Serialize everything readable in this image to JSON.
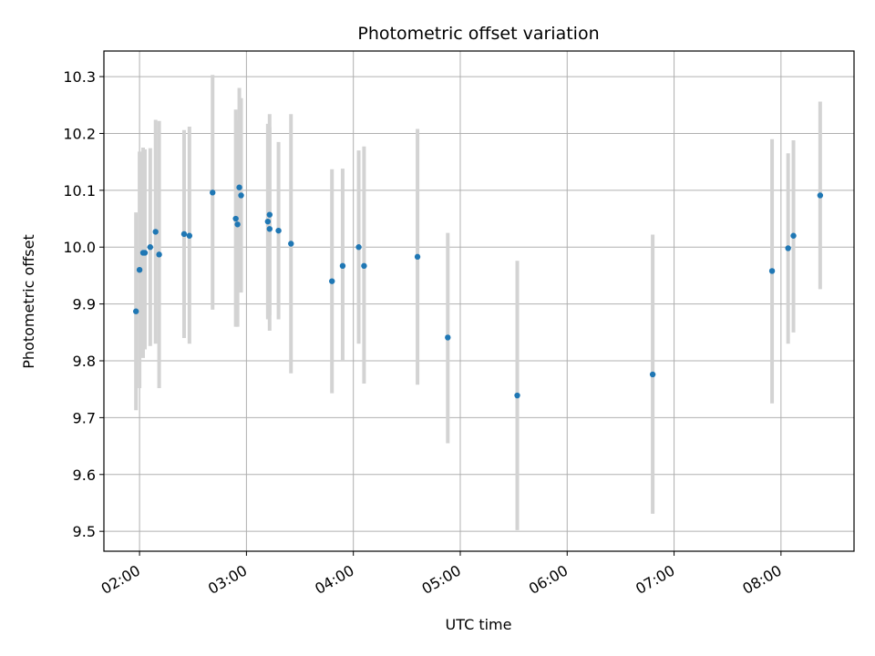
{
  "chart_data": {
    "type": "scatter",
    "title": "Photometric offset variation",
    "xlabel": "UTC time",
    "ylabel": "Photometric offset",
    "grid": true,
    "x_is_time": true,
    "xlim": [
      "01:40",
      "08:41"
    ],
    "ylim": [
      9.465,
      10.345
    ],
    "x_ticks": [
      "02:00",
      "03:00",
      "04:00",
      "05:00",
      "06:00",
      "07:00",
      "08:00"
    ],
    "y_ticks": [
      "9.5",
      "9.6",
      "9.7",
      "9.8",
      "9.9",
      "10.0",
      "10.1",
      "10.2",
      "10.3"
    ],
    "colors": {
      "point": "#1f77b4",
      "errorbar": "#d3d3d3",
      "grid": "#b0b0b0"
    },
    "series": [
      {
        "points": [
          {
            "x": "01:58",
            "y": 9.887,
            "ylo": 9.713,
            "yhi": 10.061
          },
          {
            "x": "02:00",
            "y": 9.96,
            "ylo": 9.752,
            "yhi": 10.168
          },
          {
            "x": "02:02",
            "y": 9.99,
            "ylo": 9.805,
            "yhi": 10.175
          },
          {
            "x": "02:03",
            "y": 9.99,
            "ylo": 9.82,
            "yhi": 10.172
          },
          {
            "x": "02:06",
            "y": 10.0,
            "ylo": 9.826,
            "yhi": 10.174
          },
          {
            "x": "02:09",
            "y": 10.027,
            "ylo": 9.83,
            "yhi": 10.224
          },
          {
            "x": "02:11",
            "y": 9.987,
            "ylo": 9.752,
            "yhi": 10.222
          },
          {
            "x": "02:25",
            "y": 10.023,
            "ylo": 9.84,
            "yhi": 10.206
          },
          {
            "x": "02:28",
            "y": 10.02,
            "ylo": 9.83,
            "yhi": 10.212
          },
          {
            "x": "02:41",
            "y": 10.096,
            "ylo": 9.89,
            "yhi": 10.303
          },
          {
            "x": "02:54",
            "y": 10.05,
            "ylo": 9.86,
            "yhi": 10.242
          },
          {
            "x": "02:55",
            "y": 10.04,
            "ylo": 9.86,
            "yhi": 10.222
          },
          {
            "x": "02:56",
            "y": 10.105,
            "ylo": 9.93,
            "yhi": 10.28
          },
          {
            "x": "02:57",
            "y": 10.091,
            "ylo": 9.92,
            "yhi": 10.262
          },
          {
            "x": "03:12",
            "y": 10.045,
            "ylo": 9.873,
            "yhi": 10.217
          },
          {
            "x": "03:13",
            "y": 10.032,
            "ylo": 9.853,
            "yhi": 10.211
          },
          {
            "x": "03:13",
            "y": 10.057,
            "ylo": 9.88,
            "yhi": 10.234
          },
          {
            "x": "03:18",
            "y": 10.029,
            "ylo": 9.873,
            "yhi": 10.185
          },
          {
            "x": "03:25",
            "y": 10.006,
            "ylo": 9.778,
            "yhi": 10.234
          },
          {
            "x": "03:48",
            "y": 9.94,
            "ylo": 9.743,
            "yhi": 10.137
          },
          {
            "x": "03:54",
            "y": 9.967,
            "ylo": 9.8,
            "yhi": 10.138
          },
          {
            "x": "04:03",
            "y": 10.0,
            "ylo": 9.83,
            "yhi": 10.17
          },
          {
            "x": "04:06",
            "y": 9.967,
            "ylo": 9.76,
            "yhi": 10.177
          },
          {
            "x": "04:36",
            "y": 9.983,
            "ylo": 9.758,
            "yhi": 10.208
          },
          {
            "x": "04:53",
            "y": 9.841,
            "ylo": 9.655,
            "yhi": 10.025
          },
          {
            "x": "05:32",
            "y": 9.739,
            "ylo": 9.502,
            "yhi": 9.976
          },
          {
            "x": "06:48",
            "y": 9.776,
            "ylo": 9.531,
            "yhi": 10.022
          },
          {
            "x": "07:55",
            "y": 9.958,
            "ylo": 9.725,
            "yhi": 10.19
          },
          {
            "x": "08:04",
            "y": 9.998,
            "ylo": 9.83,
            "yhi": 10.165
          },
          {
            "x": "08:07",
            "y": 10.02,
            "ylo": 9.85,
            "yhi": 10.188
          },
          {
            "x": "08:22",
            "y": 10.091,
            "ylo": 9.926,
            "yhi": 10.256
          }
        ]
      }
    ]
  }
}
